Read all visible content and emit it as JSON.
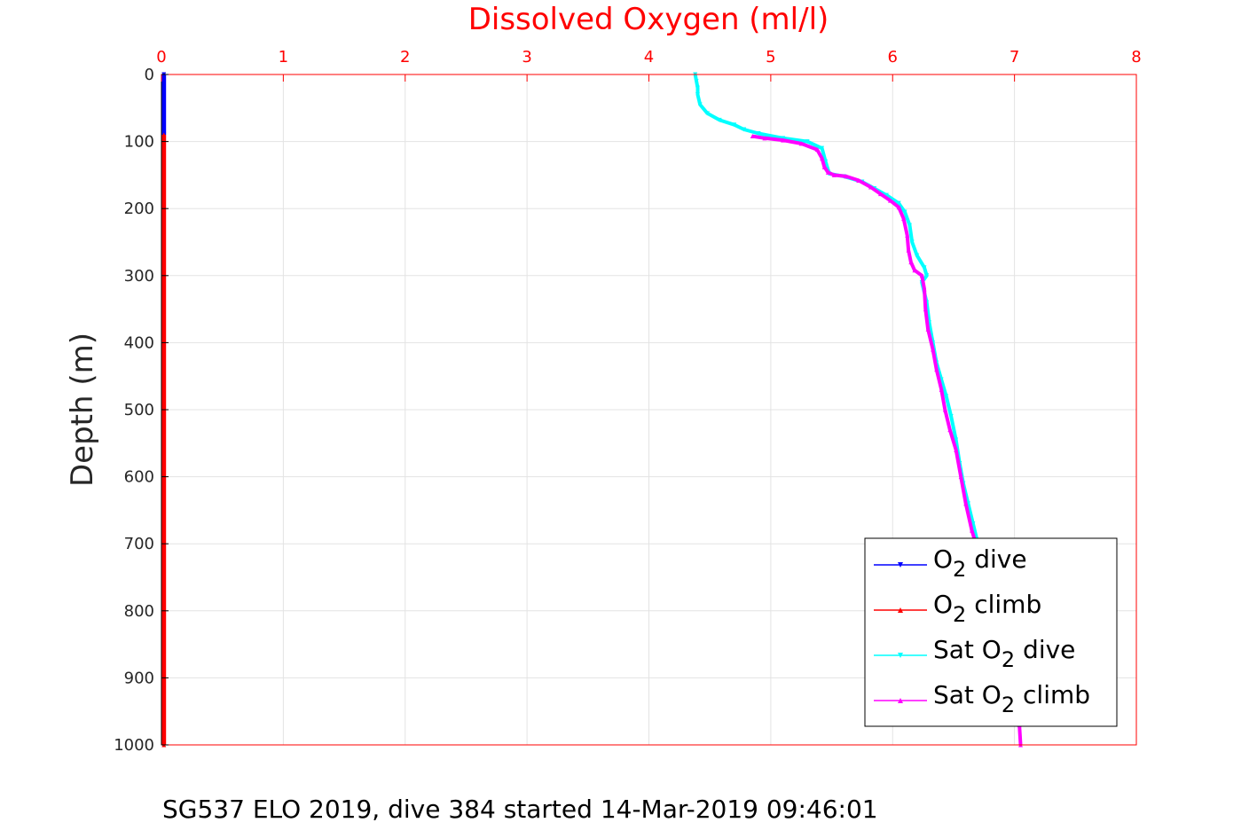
{
  "chart_data": {
    "type": "line",
    "title": "Dissolved Oxygen (ml/l)",
    "xlabel": "Dissolved Oxygen (ml/l)",
    "ylabel": "Depth (m)",
    "xlim": [
      0,
      8
    ],
    "ylim": [
      0,
      1000
    ],
    "y_reversed": true,
    "x_axis_position": "top",
    "x_ticks": [
      "0",
      "1",
      "2",
      "3",
      "4",
      "5",
      "6",
      "7",
      "8"
    ],
    "y_ticks": [
      "0",
      "100",
      "200",
      "300",
      "400",
      "500",
      "600",
      "700",
      "800",
      "900",
      "1000"
    ],
    "grid": true,
    "legend_position": "bottom-right",
    "colors": {
      "axis": "#ff0000",
      "o2_dive": "#0000ff",
      "o2_climb": "#ff0000",
      "sat_dive": "#00ffff",
      "sat_climb": "#ff00ff"
    },
    "series": [
      {
        "key": "o2_dive",
        "name_main": "O",
        "name_sub": "2",
        "name_rest": " dive",
        "marker": "down",
        "x": [
          0.02,
          0.02
        ],
        "y": [
          0,
          90
        ]
      },
      {
        "key": "o2_climb",
        "name_main": "O",
        "name_sub": "2",
        "name_rest": " climb",
        "marker": "up",
        "x": [
          0.02,
          0.02
        ],
        "y": [
          90,
          1000
        ]
      },
      {
        "key": "sat_dive",
        "name_pre": "Sat O",
        "name_sub": "2",
        "name_rest": " dive",
        "marker": "down",
        "x": [
          4.38,
          4.39,
          4.4,
          4.4,
          4.42,
          4.48,
          4.58,
          4.7,
          4.78,
          4.9,
          5.1,
          5.3,
          5.42,
          5.45,
          5.48,
          5.6,
          5.75,
          5.85,
          5.95,
          6.05,
          6.1,
          6.14,
          6.16,
          6.2,
          6.26,
          6.28,
          6.24,
          6.28,
          6.3,
          6.33,
          6.36,
          6.4,
          6.44,
          6.48,
          6.52,
          6.55,
          6.58,
          6.62,
          6.66,
          6.7
        ],
        "y": [
          0,
          10,
          20,
          30,
          45,
          58,
          68,
          75,
          82,
          88,
          95,
          100,
          110,
          130,
          148,
          152,
          160,
          170,
          180,
          192,
          205,
          225,
          250,
          270,
          288,
          300,
          310,
          340,
          370,
          400,
          430,
          455,
          480,
          510,
          545,
          580,
          610,
          640,
          670,
          700
        ]
      },
      {
        "key": "sat_climb",
        "name_pre": "Sat O",
        "name_sub": "2",
        "name_rest": " climb",
        "marker": "up",
        "x": [
          4.85,
          4.95,
          5.1,
          5.25,
          5.38,
          5.42,
          5.44,
          5.47,
          5.52,
          5.62,
          5.72,
          5.82,
          5.9,
          5.98,
          6.05,
          6.09,
          6.12,
          6.13,
          6.15,
          6.18,
          6.24,
          6.26,
          6.27,
          6.29,
          6.33,
          6.36,
          6.4,
          6.43,
          6.47,
          6.52,
          6.56,
          6.6,
          6.65,
          6.7,
          6.76,
          6.84,
          6.92,
          6.98,
          7.02,
          7.04,
          7.05
        ],
        "y": [
          92,
          95,
          98,
          103,
          112,
          125,
          138,
          146,
          150,
          152,
          158,
          168,
          178,
          188,
          198,
          215,
          240,
          262,
          280,
          292,
          300,
          320,
          350,
          380,
          410,
          440,
          470,
          500,
          530,
          560,
          600,
          640,
          680,
          710,
          750,
          800,
          850,
          900,
          940,
          970,
          1000
        ]
      }
    ]
  },
  "caption": "SG537 ELO 2019, dive 384 started 14-Mar-2019 09:46:01"
}
